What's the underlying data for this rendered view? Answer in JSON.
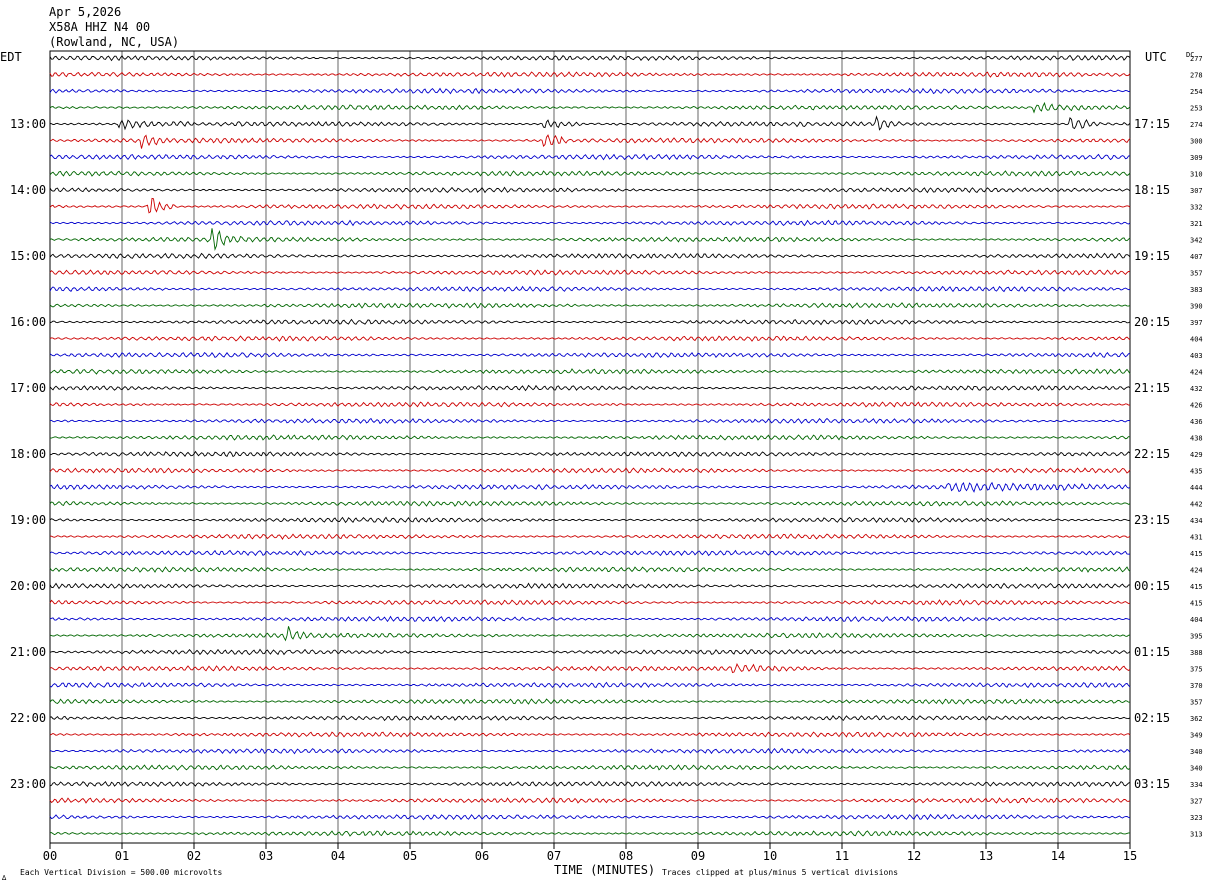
{
  "header": {
    "date": "Apr 5,2026",
    "station": "X58A HHZ N4 00",
    "location": "(Rowland, NC, USA)"
  },
  "labels": {
    "left_tz": "EDT",
    "right_tz": "UTC",
    "dc": "DC",
    "xlabel": "TIME (MINUTES)",
    "scale_note": "Each Vertical Division =  500.00 microvolts",
    "clip_note": "Traces clipped at plus/minus 5 vertical divisions",
    "corner_mark": "∆"
  },
  "colors": {
    "trace_cycle": [
      "#000000",
      "#cc0000",
      "#0000cc",
      "#006600"
    ],
    "grid": "#000000",
    "text": "#000000"
  },
  "chart_data": {
    "type": "line",
    "title": "X58A HHZ N4 00 (Rowland, NC, USA) Apr 5,2026",
    "xlabel": "TIME (MINUTES)",
    "x_ticks": [
      "00",
      "01",
      "02",
      "03",
      "04",
      "05",
      "06",
      "07",
      "08",
      "09",
      "10",
      "11",
      "12",
      "13",
      "14",
      "15"
    ],
    "xlim": [
      0,
      15
    ],
    "minutes_per_line": 15,
    "grid": true,
    "left_hour_labels": [
      "13:00",
      "14:00",
      "15:00",
      "16:00",
      "17:00",
      "18:00",
      "19:00",
      "20:00",
      "21:00",
      "22:00",
      "23:00"
    ],
    "right_hour_labels": [
      "17:15",
      "18:15",
      "19:15",
      "20:15",
      "21:15",
      "22:15",
      "23:15",
      "00:15",
      "01:15",
      "02:15",
      "03:15"
    ],
    "hour_label_first_line": 4,
    "dc_offsets": [
      277,
      278,
      254,
      253,
      274,
      300,
      309,
      310,
      307,
      332,
      321,
      342,
      407,
      357,
      383,
      390,
      397,
      404,
      403,
      424,
      432,
      426,
      436,
      438,
      429,
      435,
      444,
      442,
      434,
      431,
      415,
      424,
      415,
      415,
      404,
      395,
      388,
      375,
      370,
      357,
      362,
      349,
      340,
      340,
      334,
      327,
      323,
      313
    ],
    "events": [
      {
        "line": 3,
        "minute": 13.7,
        "amp": 4,
        "dur": 1.5
      },
      {
        "line": 4,
        "minute": 1.0,
        "amp": 4,
        "dur": 1.0
      },
      {
        "line": 4,
        "minute": 6.9,
        "amp": 5,
        "dur": 0.5
      },
      {
        "line": 4,
        "minute": 11.5,
        "amp": 6,
        "dur": 0.3
      },
      {
        "line": 4,
        "minute": 14.2,
        "amp": 8,
        "dur": 0.4
      },
      {
        "line": 5,
        "minute": 1.3,
        "amp": 7,
        "dur": 0.3
      },
      {
        "line": 5,
        "minute": 6.9,
        "amp": 9,
        "dur": 0.3
      },
      {
        "line": 9,
        "minute": 1.4,
        "amp": 10,
        "dur": 0.35
      },
      {
        "line": 11,
        "minute": 2.3,
        "amp": 9,
        "dur": 0.35
      },
      {
        "line": 26,
        "minute": 12.5,
        "amp": 3,
        "dur": 2.5
      },
      {
        "line": 35,
        "minute": 3.3,
        "amp": 7,
        "dur": 0.25
      },
      {
        "line": 37,
        "minute": 9.5,
        "amp": 3,
        "dur": 1.2
      }
    ]
  }
}
